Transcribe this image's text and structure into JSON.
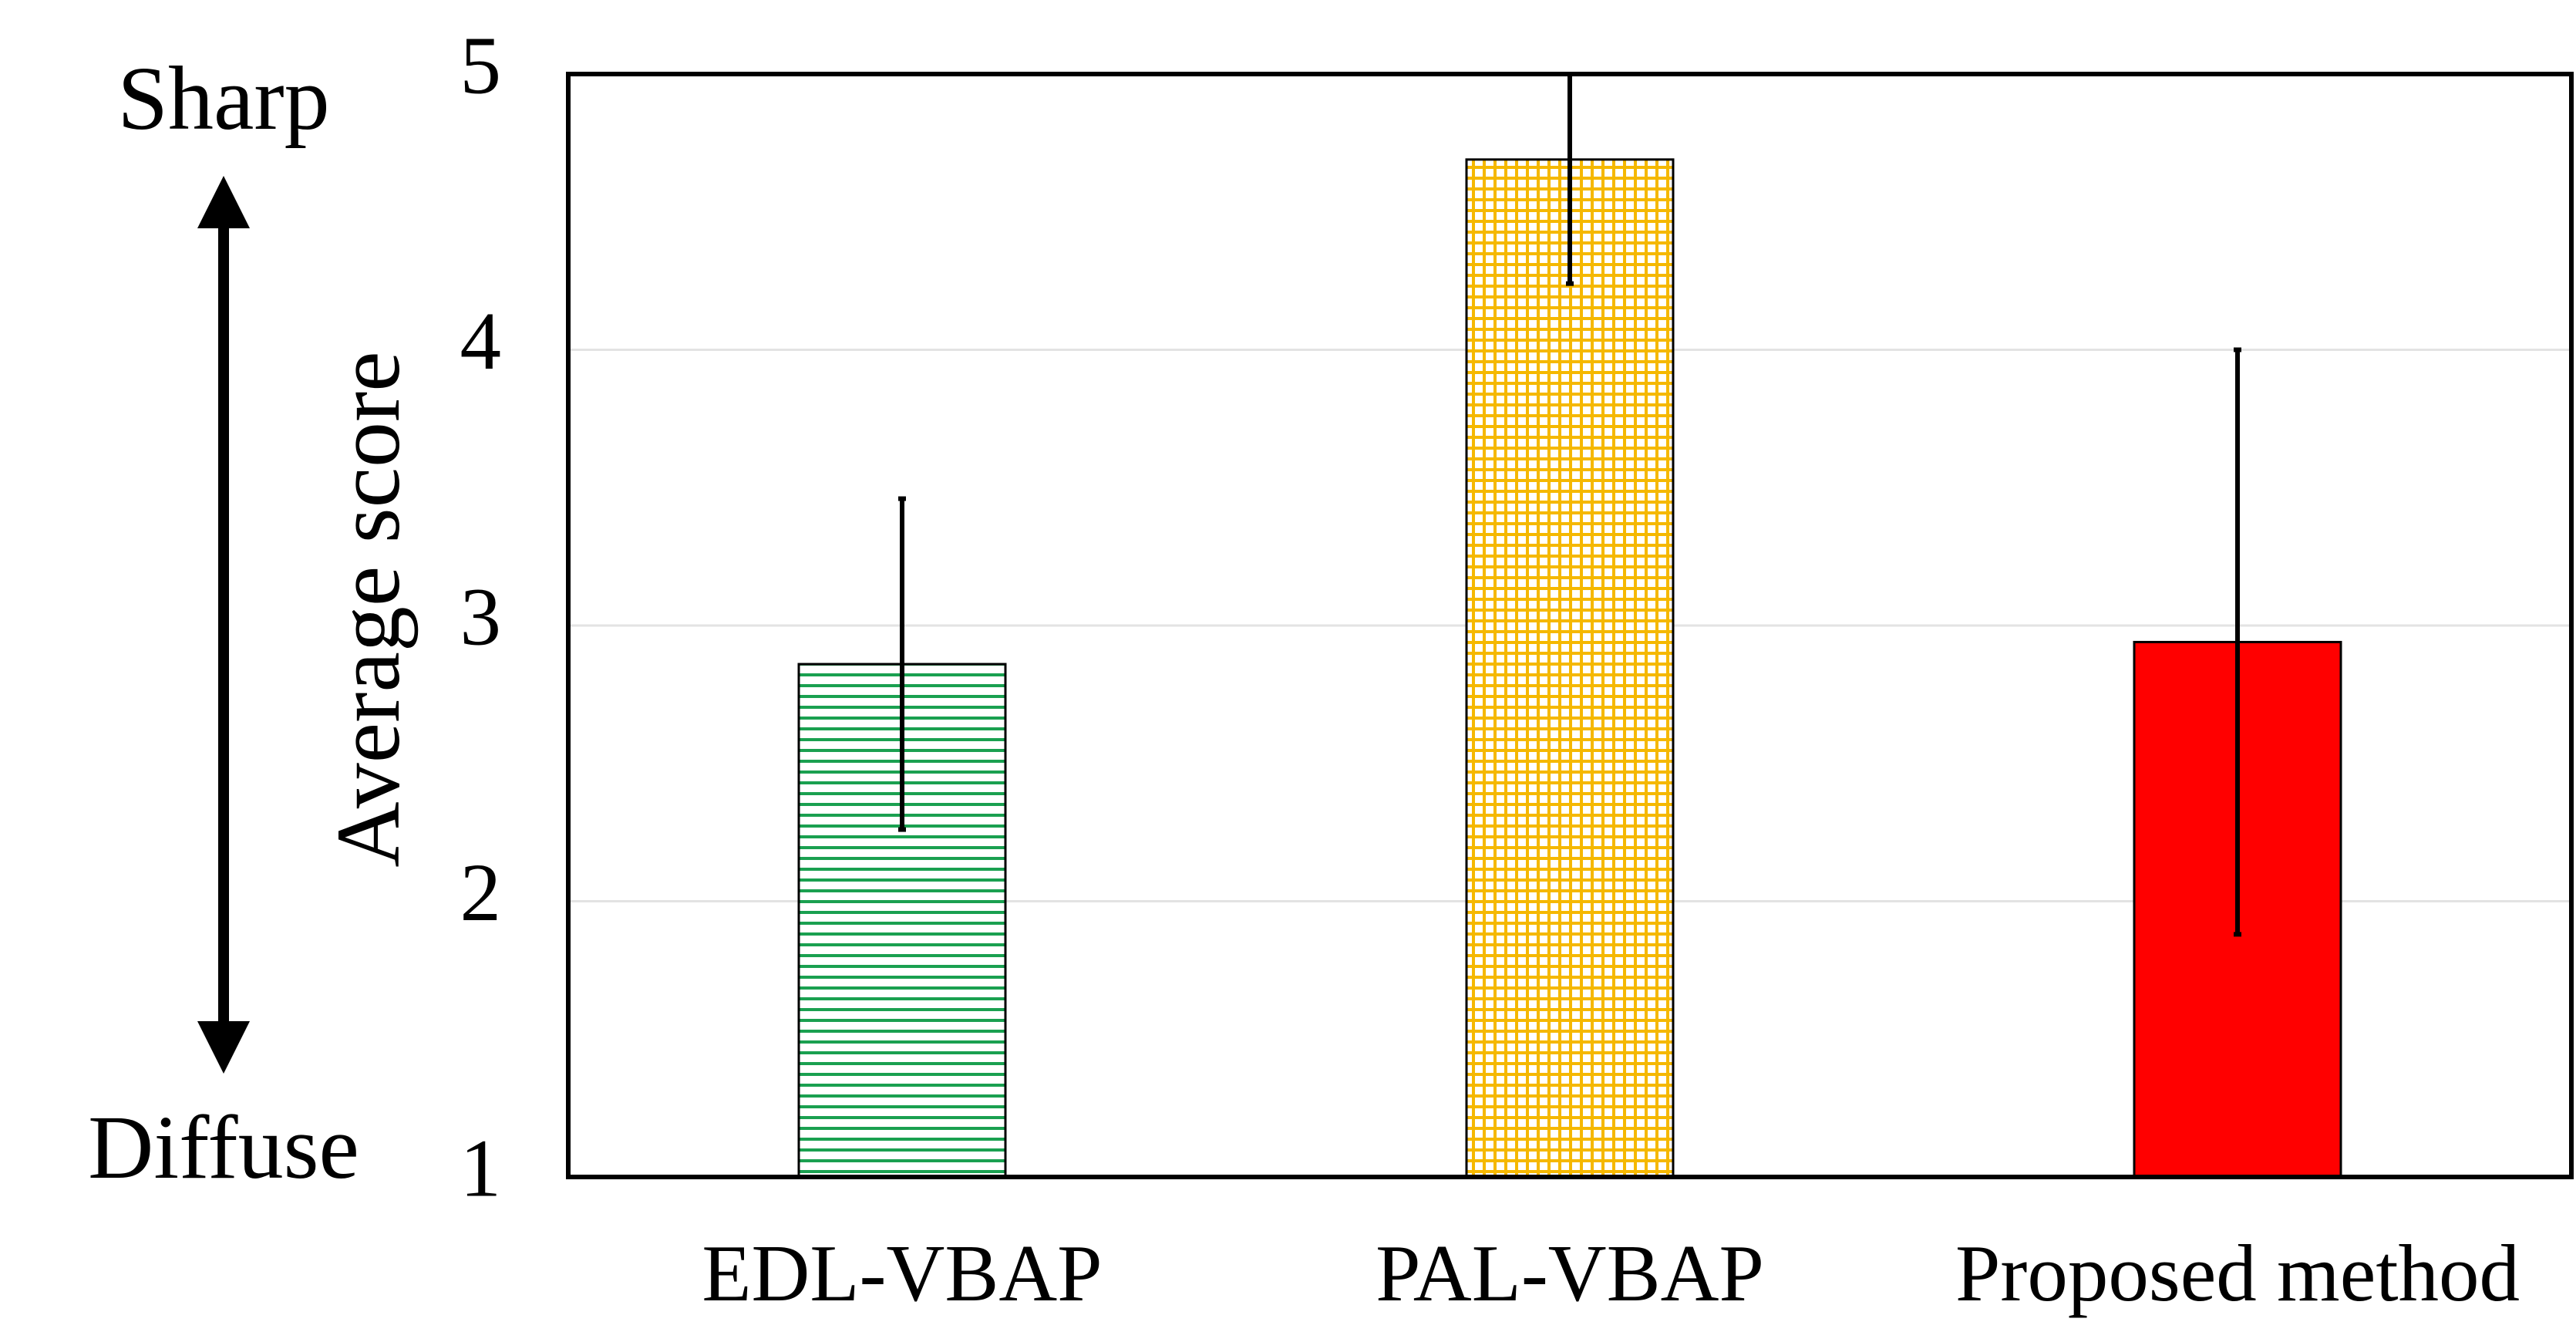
{
  "chart_data": {
    "type": "bar",
    "y_label": "Average score",
    "annotations": [
      "Sharp",
      "Diffuse"
    ],
    "categories": [
      "EDL-VBAP",
      "PAL-VBAP",
      "Proposed method"
    ],
    "values": [
      2.86,
      4.69,
      2.94
    ],
    "errors": [
      0.6,
      0.45,
      1.06
    ],
    "colors": [
      "#1aa050",
      "#f5b800",
      "#ff0000"
    ],
    "patterns": [
      "horizontal",
      "grid",
      "solid"
    ],
    "ylim": [
      1,
      5
    ],
    "yticks": [
      1,
      2,
      3,
      4,
      5
    ],
    "grid": true
  }
}
